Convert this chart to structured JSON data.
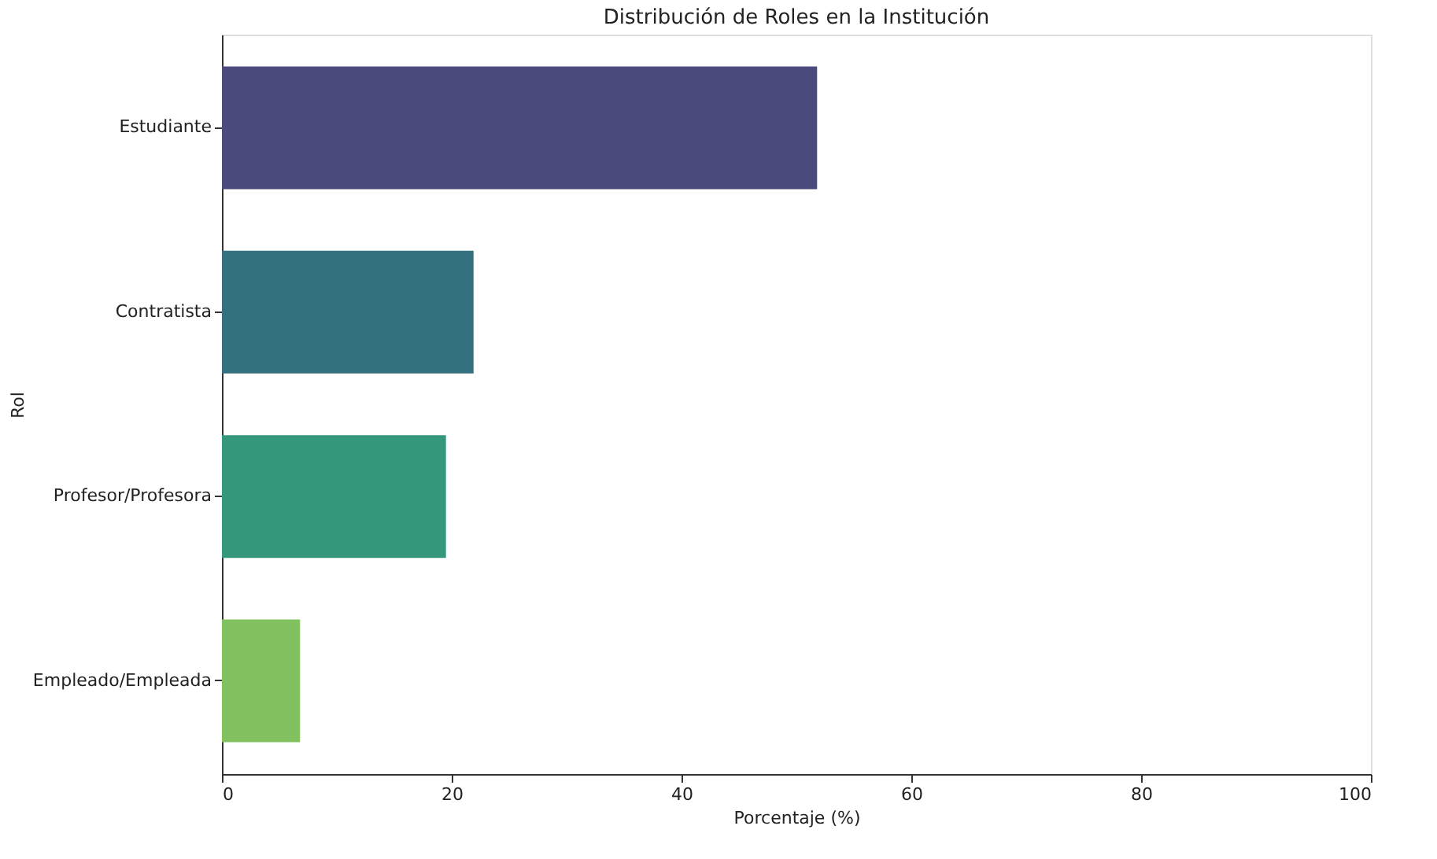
{
  "chart_data": {
    "type": "bar",
    "orientation": "horizontal",
    "title": "Distribución de Roles en la Institución",
    "xlabel": "Porcentaje (%)",
    "ylabel": "Rol",
    "categories": [
      "Estudiante",
      "Contratista",
      "Profesor/Profesora",
      "Empleado/Empleada"
    ],
    "values": [
      51.8,
      21.9,
      19.5,
      6.8
    ],
    "colors": [
      "#4b4a7c",
      "#35707e",
      "#35977b",
      "#82c160"
    ],
    "xlim": [
      0,
      100
    ],
    "xticks": [
      0,
      20,
      40,
      60,
      80,
      100
    ],
    "grid": false,
    "legend": false
  }
}
